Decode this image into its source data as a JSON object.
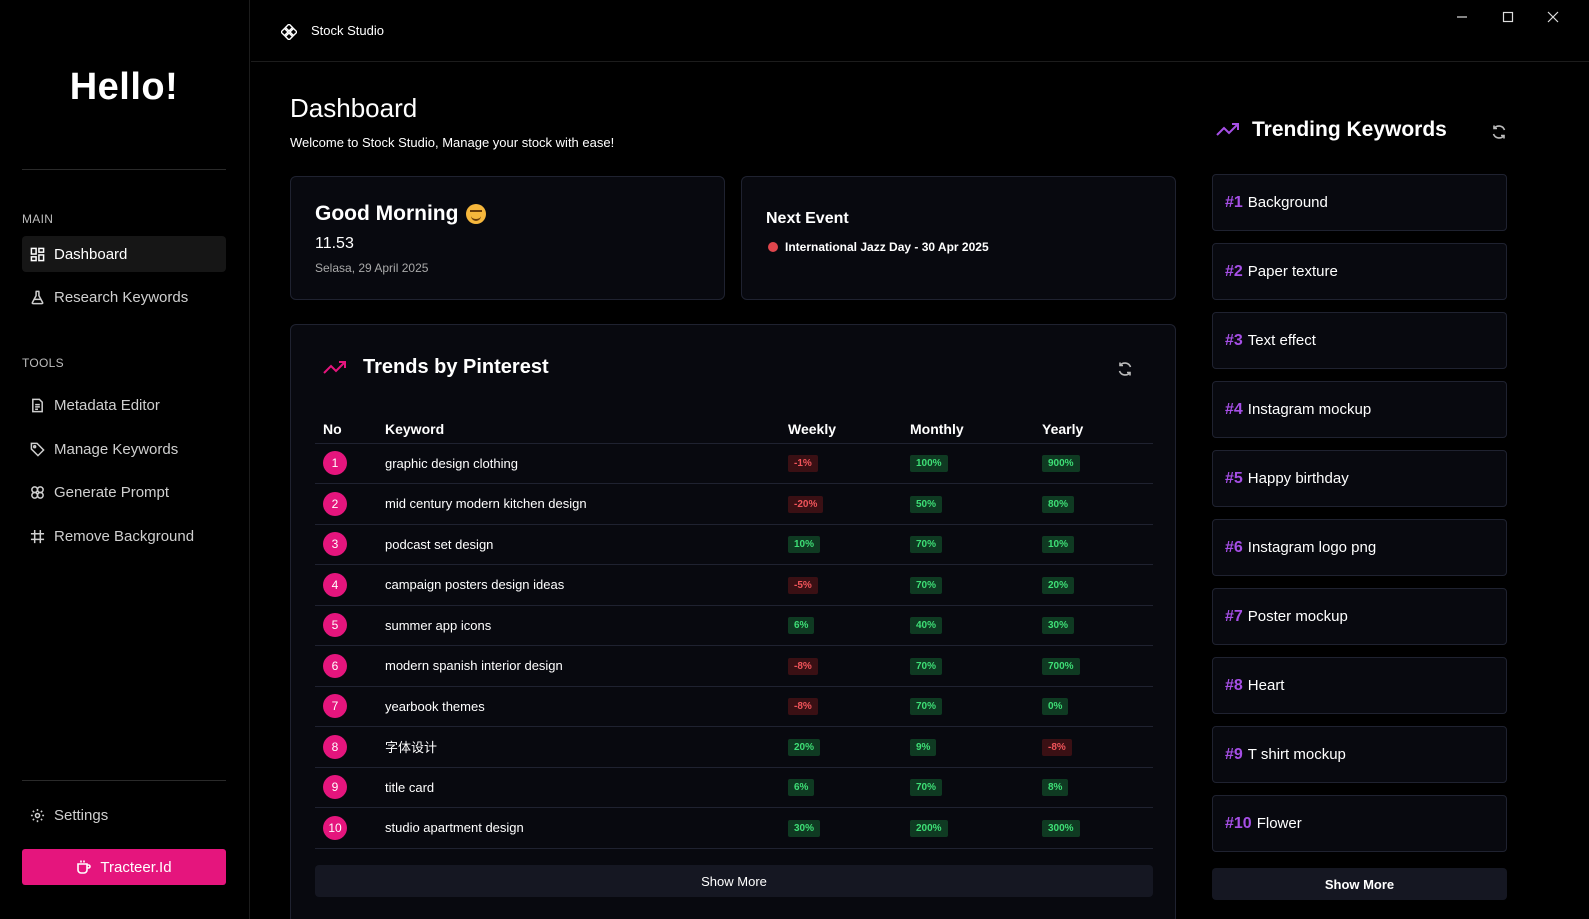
{
  "sidebar": {
    "greeting": "Hello!",
    "main_label": "MAIN",
    "tools_label": "TOOLS",
    "main_items": [
      {
        "label": "Dashboard",
        "icon": "grid-icon"
      },
      {
        "label": "Research Keywords",
        "icon": "flask-icon"
      }
    ],
    "tool_items": [
      {
        "label": "Metadata Editor",
        "icon": "document-icon"
      },
      {
        "label": "Manage Keywords",
        "icon": "tag-icon"
      },
      {
        "label": "Generate Prompt",
        "icon": "sparkle-icon"
      },
      {
        "label": "Remove Background",
        "icon": "crop-icon"
      }
    ],
    "settings_label": "Settings",
    "tracteer_label": "Tracteer.Id"
  },
  "titlebar": {
    "app_name": "Stock Studio"
  },
  "header": {
    "title": "Dashboard",
    "subtitle": "Welcome to Stock Studio, Manage your stock with ease!"
  },
  "greeting_card": {
    "greeting": "Good Morning",
    "time": "11.53",
    "date": "Selasa, 29 April 2025"
  },
  "event_card": {
    "title": "Next Event",
    "event": "International Jazz Day - 30 Apr 2025"
  },
  "trends": {
    "title": "Trends by Pinterest",
    "columns": [
      "No",
      "Keyword",
      "Weekly",
      "Monthly",
      "Yearly"
    ],
    "rows": [
      {
        "no": "1",
        "keyword": "graphic design clothing",
        "weekly": "-1%",
        "monthly": "100%",
        "yearly": "900%"
      },
      {
        "no": "2",
        "keyword": "mid century modern kitchen design",
        "weekly": "-20%",
        "monthly": "50%",
        "yearly": "80%"
      },
      {
        "no": "3",
        "keyword": "podcast set design",
        "weekly": "10%",
        "monthly": "70%",
        "yearly": "10%"
      },
      {
        "no": "4",
        "keyword": "campaign posters design ideas",
        "weekly": "-5%",
        "monthly": "70%",
        "yearly": "20%"
      },
      {
        "no": "5",
        "keyword": "summer app icons",
        "weekly": "6%",
        "monthly": "40%",
        "yearly": "30%"
      },
      {
        "no": "6",
        "keyword": "modern spanish interior design",
        "weekly": "-8%",
        "monthly": "70%",
        "yearly": "700%"
      },
      {
        "no": "7",
        "keyword": "yearbook themes",
        "weekly": "-8%",
        "monthly": "70%",
        "yearly": "0%"
      },
      {
        "no": "8",
        "keyword": "字体设计",
        "weekly": "20%",
        "monthly": "9%",
        "yearly": "-8%"
      },
      {
        "no": "9",
        "keyword": "title card",
        "weekly": "6%",
        "monthly": "70%",
        "yearly": "8%"
      },
      {
        "no": "10",
        "keyword": "studio apartment design",
        "weekly": "30%",
        "monthly": "200%",
        "yearly": "300%"
      }
    ],
    "show_more": "Show More"
  },
  "trending_keywords": {
    "title": "Trending Keywords",
    "items": [
      {
        "rank": "#1",
        "label": "Background"
      },
      {
        "rank": "#2",
        "label": "Paper texture"
      },
      {
        "rank": "#3",
        "label": "Text effect"
      },
      {
        "rank": "#4",
        "label": "Instagram mockup"
      },
      {
        "rank": "#5",
        "label": "Happy birthday"
      },
      {
        "rank": "#6",
        "label": "Instagram logo png"
      },
      {
        "rank": "#7",
        "label": "Poster mockup"
      },
      {
        "rank": "#8",
        "label": "Heart"
      },
      {
        "rank": "#9",
        "label": "T shirt mockup"
      },
      {
        "rank": "#10",
        "label": "Flower"
      }
    ],
    "show_more": "Show More"
  },
  "colors": {
    "accent_pink": "#e5157d",
    "accent_purple": "#a64fe6",
    "positive": "#3ede76",
    "negative": "#f0545a"
  }
}
